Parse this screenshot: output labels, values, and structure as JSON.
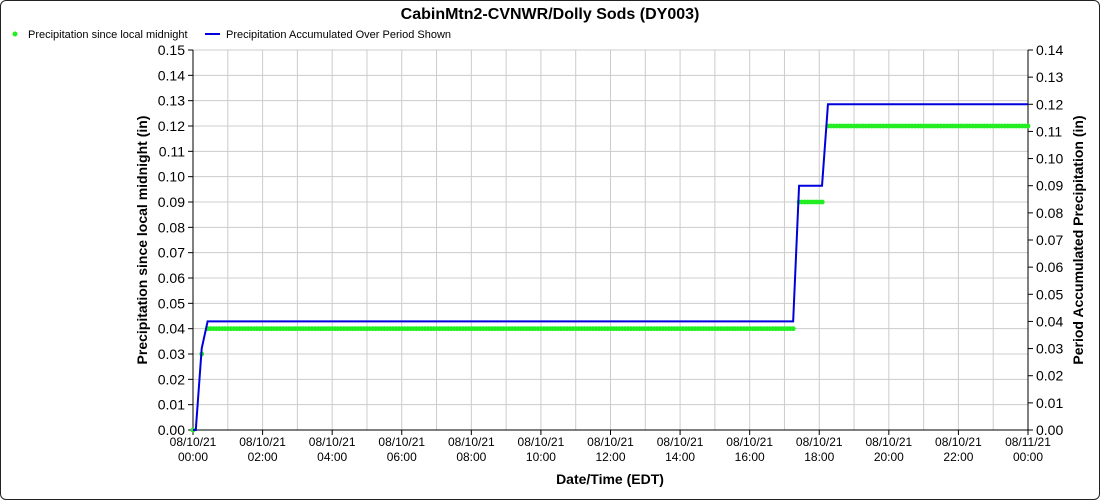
{
  "chart_data": {
    "type": "line",
    "title": "CabinMtn2-CVNWR/Dolly Sods (DY003)",
    "xlabel": "Date/Time (EDT)",
    "ylabel_left": "Precipitation since local midnight (in)",
    "ylabel_right": "Period Accumulated Precipitation (in)",
    "ylim_left": [
      0,
      0.15
    ],
    "ylim_right": [
      0,
      0.14
    ],
    "yticks_left": [
      "0.00",
      "0.01",
      "0.02",
      "0.03",
      "0.04",
      "0.05",
      "0.06",
      "0.07",
      "0.08",
      "0.09",
      "0.10",
      "0.11",
      "0.12",
      "0.13",
      "0.14",
      "0.15"
    ],
    "yticks_right": [
      "0.00",
      "0.01",
      "0.02",
      "0.03",
      "0.04",
      "0.05",
      "0.06",
      "0.07",
      "0.08",
      "0.09",
      "0.10",
      "0.11",
      "0.12",
      "0.13",
      "0.14"
    ],
    "xlim_hours": [
      0,
      24
    ],
    "x_ticks": [
      {
        "hour": 0,
        "date": "08/10/21",
        "time": "00:00"
      },
      {
        "hour": 2,
        "date": "08/10/21",
        "time": "02:00"
      },
      {
        "hour": 4,
        "date": "08/10/21",
        "time": "04:00"
      },
      {
        "hour": 6,
        "date": "08/10/21",
        "time": "06:00"
      },
      {
        "hour": 8,
        "date": "08/10/21",
        "time": "08:00"
      },
      {
        "hour": 10,
        "date": "08/10/21",
        "time": "10:00"
      },
      {
        "hour": 12,
        "date": "08/10/21",
        "time": "12:00"
      },
      {
        "hour": 14,
        "date": "08/10/21",
        "time": "14:00"
      },
      {
        "hour": 16,
        "date": "08/10/21",
        "time": "16:00"
      },
      {
        "hour": 18,
        "date": "08/10/21",
        "time": "18:00"
      },
      {
        "hour": 20,
        "date": "08/10/21",
        "time": "20:00"
      },
      {
        "hour": 22,
        "date": "08/10/21",
        "time": "22:00"
      },
      {
        "hour": 24,
        "date": "08/11/21",
        "time": "00:00"
      }
    ],
    "grid": true,
    "legend_position": "top-left",
    "series": [
      {
        "name": "Precipitation since local midnight",
        "style": "dots",
        "axis": "left",
        "color": "#22ee22",
        "segments": [
          {
            "start_hour": 0.0,
            "end_hour": 0.0,
            "value": 0.0
          },
          {
            "start_hour": 0.25,
            "end_hour": 0.25,
            "value": 0.03
          },
          {
            "start_hour": 0.42,
            "end_hour": 17.25,
            "value": 0.04
          },
          {
            "start_hour": 17.42,
            "end_hour": 18.08,
            "value": 0.09
          },
          {
            "start_hour": 18.25,
            "end_hour": 24.0,
            "value": 0.12
          }
        ]
      },
      {
        "name": "Precipitation Accumulated Over Period Shown",
        "style": "line",
        "axis": "right",
        "color": "#0000dd",
        "points": [
          [
            0.0,
            0.0
          ],
          [
            0.08,
            0.0
          ],
          [
            0.25,
            0.03
          ],
          [
            0.42,
            0.04
          ],
          [
            17.25,
            0.04
          ],
          [
            17.42,
            0.09
          ],
          [
            18.08,
            0.09
          ],
          [
            18.25,
            0.12
          ],
          [
            24.0,
            0.12
          ]
        ]
      }
    ]
  }
}
